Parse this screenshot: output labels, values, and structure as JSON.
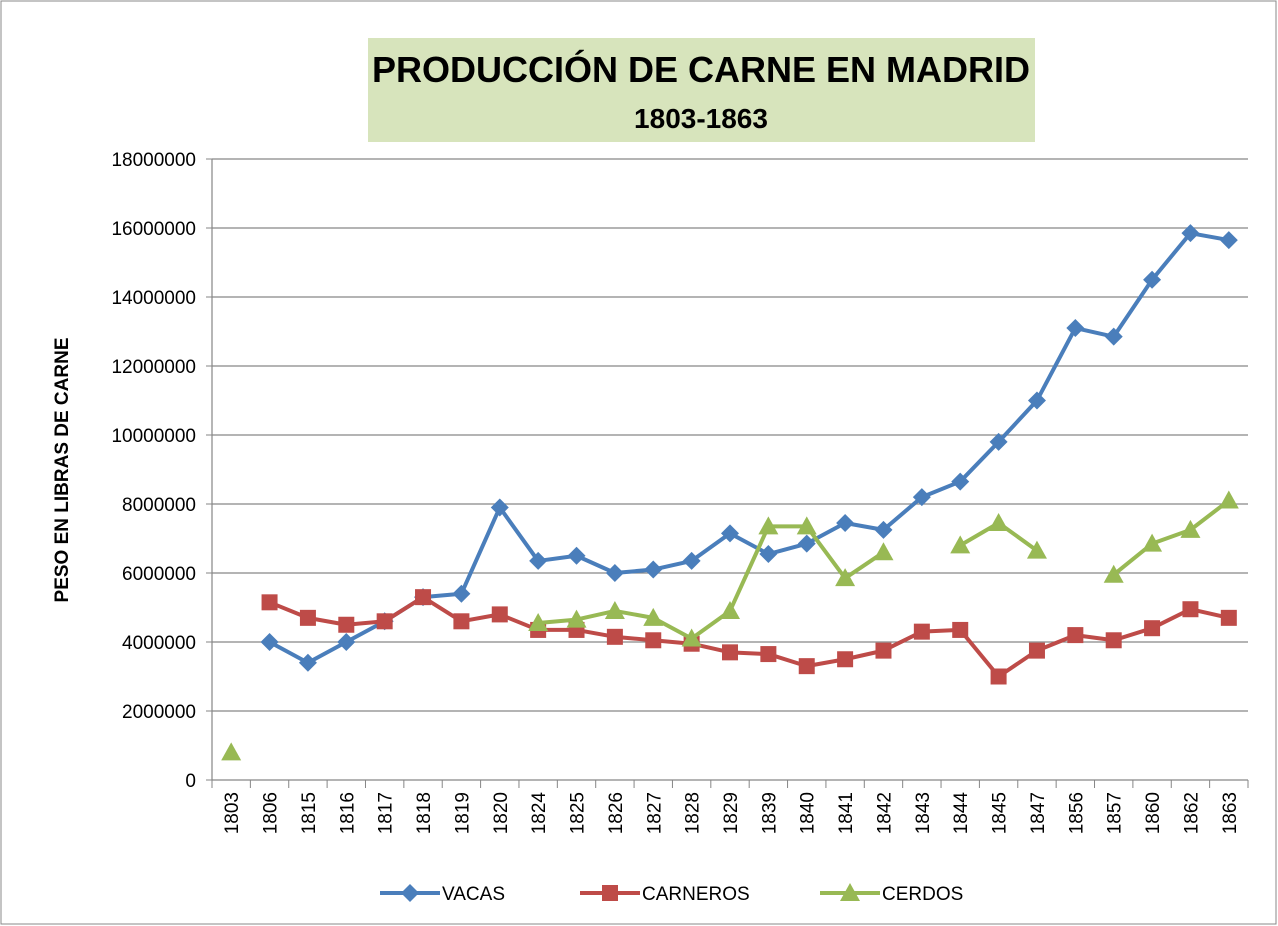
{
  "chart_data": {
    "type": "line",
    "title": "PRODUCCIÓN DE CARNE EN MADRID",
    "subtitle": "1803-1863",
    "y_label": "PESO EN LIBRAS DE CARNE",
    "categories": [
      "1803",
      "1806",
      "1815",
      "1816",
      "1817",
      "1818",
      "1819",
      "1820",
      "1824",
      "1825",
      "1826",
      "1827",
      "1828",
      "1829",
      "1839",
      "1840",
      "1841",
      "1842",
      "1843",
      "1844",
      "1845",
      "1847",
      "1856",
      "1857",
      "1860",
      "1862",
      "1863"
    ],
    "series": [
      {
        "name": "VACAS",
        "color": "#4a7ebb",
        "marker": "diamond",
        "values": [
          null,
          4000000,
          3400000,
          4000000,
          4600000,
          5300000,
          5400000,
          7900000,
          6350000,
          6500000,
          6000000,
          6100000,
          6350000,
          7150000,
          6550000,
          6850000,
          7450000,
          7250000,
          8200000,
          8650000,
          9800000,
          11000000,
          13100000,
          12850000,
          14500000,
          15850000,
          15650000
        ]
      },
      {
        "name": "CARNEROS",
        "color": "#be4b48",
        "marker": "square",
        "values": [
          null,
          5150000,
          4700000,
          4500000,
          4600000,
          5300000,
          4600000,
          4800000,
          4350000,
          4350000,
          4150000,
          4050000,
          3950000,
          3700000,
          3650000,
          3300000,
          3500000,
          3750000,
          4300000,
          4350000,
          3000000,
          3750000,
          4200000,
          4050000,
          4400000,
          4950000,
          4700000
        ]
      },
      {
        "name": "CERDOS",
        "color": "#98b954",
        "marker": "triangle",
        "values": [
          800000,
          null,
          null,
          null,
          null,
          null,
          null,
          null,
          4550000,
          4650000,
          4900000,
          4700000,
          4100000,
          4900000,
          7350000,
          7350000,
          5850000,
          6600000,
          null,
          6800000,
          7450000,
          6650000,
          null,
          5950000,
          6850000,
          7250000,
          8100000
        ]
      }
    ],
    "ylim": [
      0,
      18000000
    ],
    "yticks": [
      0,
      2000000,
      4000000,
      6000000,
      8000000,
      10000000,
      12000000,
      14000000,
      16000000,
      18000000
    ],
    "grid": true,
    "legend": "bottom"
  }
}
